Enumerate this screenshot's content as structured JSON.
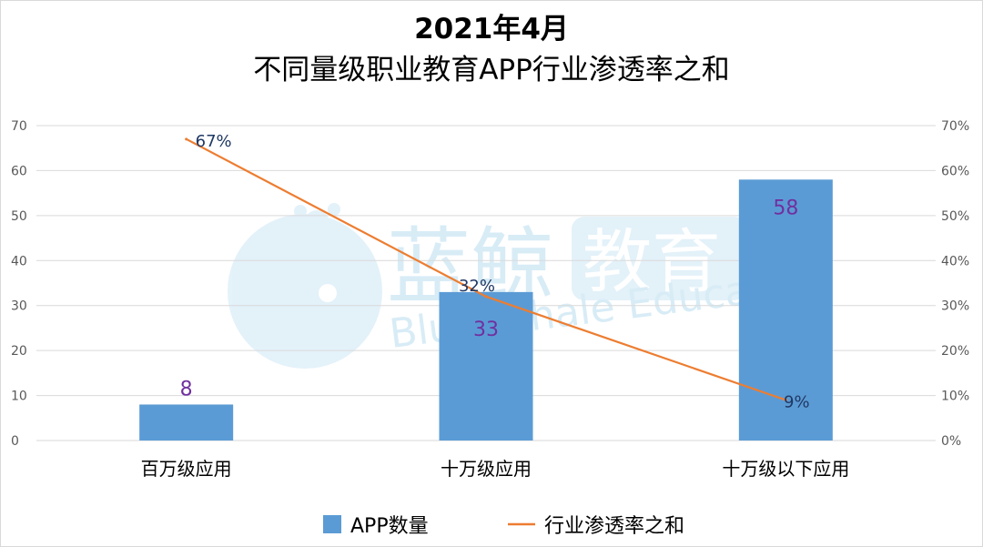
{
  "title": {
    "line1": "2021年4月",
    "line2": "不同量级职业教育APP行业渗透率之和"
  },
  "watermark": {
    "cn": "蓝鲸",
    "cn_box": "教育",
    "en": "Blue Whale Education"
  },
  "legend": {
    "placement": "bottom",
    "bar_label": "APP数量",
    "line_label": "行业渗透率之和"
  },
  "colors": {
    "bar": "#5b9bd5",
    "line": "#ed7d31",
    "grid": "#d9d9d9",
    "bar_label": "#7030a0",
    "line_label": "#1f3864",
    "watermark": "#cde7f5"
  },
  "chart_data": {
    "type": "bar",
    "categories": [
      "百万级应用",
      "十万级应用",
      "十万级以下应用"
    ],
    "series": [
      {
        "name": "APP数量",
        "type": "bar",
        "axis": "left",
        "values": [
          8,
          33,
          58
        ],
        "labels": [
          "8",
          "33",
          "58"
        ]
      },
      {
        "name": "行业渗透率之和",
        "type": "line",
        "axis": "right",
        "values": [
          67,
          32,
          9
        ],
        "labels": [
          "67%",
          "32%",
          "9%"
        ]
      }
    ],
    "y_left": {
      "min": 0,
      "max": 70,
      "ticks": [
        "0",
        "10",
        "20",
        "30",
        "40",
        "50",
        "60",
        "70"
      ]
    },
    "y_right": {
      "min": 0,
      "max": 70,
      "ticks": [
        "0%",
        "10%",
        "20%",
        "30%",
        "40%",
        "50%",
        "60%",
        "70%"
      ]
    },
    "grid": true
  }
}
